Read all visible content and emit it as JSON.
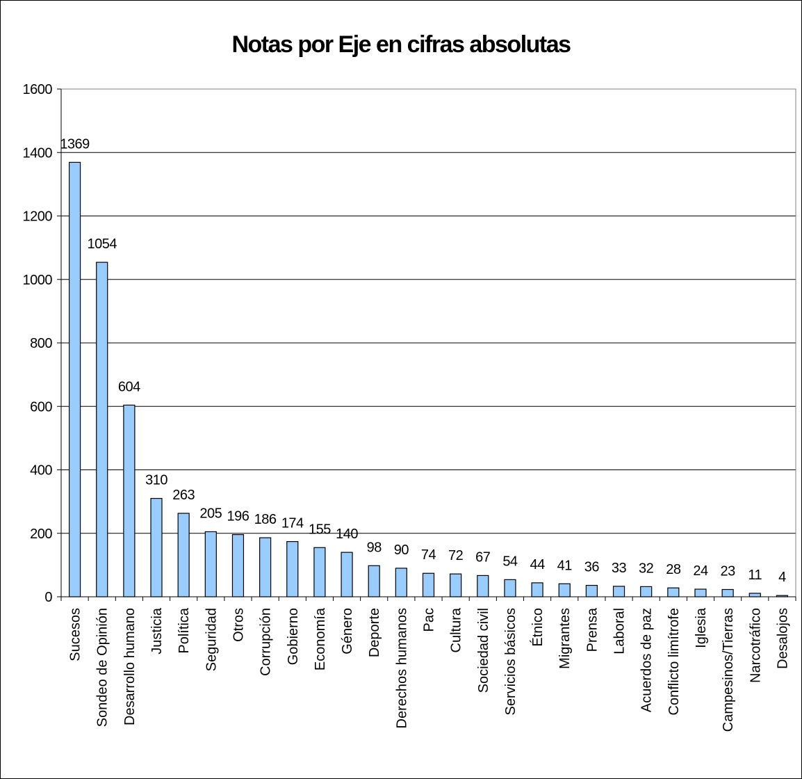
{
  "chart_data": {
    "type": "bar",
    "title": "Notas por Eje en cifras absolutas",
    "categories": [
      "Sucesos",
      "Sondeo de Opinión",
      "Desarrollo humano",
      "Justicia",
      "Política",
      "Seguridad",
      "Otros",
      "Corrupción",
      "Gobierno",
      "Economía",
      "Género",
      "Deporte",
      "Derechos humanos",
      "Pac",
      "Cultura",
      "Sociedad civil",
      "Servicios básicos",
      "Étnico",
      "Migrantes",
      "Prensa",
      "Laboral",
      "Acuerdos de paz",
      "Conflicto limítrofe",
      "Iglesia",
      "Campesinos/Tierras",
      "Narcotráfico",
      "Desalojos"
    ],
    "values": [
      1369,
      1054,
      604,
      310,
      263,
      205,
      196,
      186,
      174,
      155,
      140,
      98,
      90,
      74,
      72,
      67,
      54,
      44,
      41,
      36,
      33,
      32,
      28,
      24,
      23,
      11,
      4
    ],
    "data_labels": [
      "1369",
      "1054",
      "604",
      "310",
      "263",
      "205",
      "196",
      "186",
      "174",
      "155",
      "140",
      "98",
      "90",
      "74",
      "72",
      "67",
      "54",
      "44",
      "41",
      "36",
      "33",
      "32",
      "28",
      "24",
      "23",
      "11",
      "4"
    ],
    "y_ticks": [
      "0",
      "200",
      "400",
      "600",
      "800",
      "1000",
      "1200",
      "1400",
      "1600"
    ],
    "ylim": [
      0,
      1600
    ],
    "xlabel": "",
    "ylabel": "",
    "grid": true,
    "legend": "none",
    "colors": {
      "bar_fill": "#99ccff",
      "bar_stroke": "#000000",
      "grid": "#000000",
      "background": "#ffffff"
    }
  }
}
